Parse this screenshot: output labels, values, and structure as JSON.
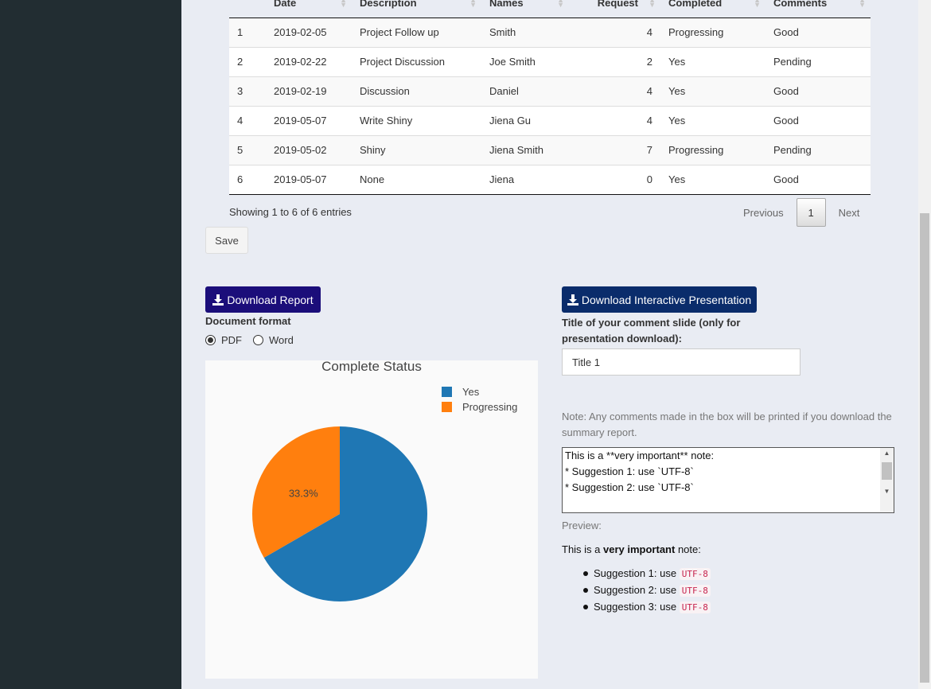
{
  "table": {
    "columns": [
      "",
      "Date",
      "Description",
      "Names",
      "Request",
      "Completed",
      "Comments"
    ],
    "rows": [
      [
        "1",
        "2019-02-05",
        "Project Follow up",
        "Smith",
        "4",
        "Progressing",
        "Good"
      ],
      [
        "2",
        "2019-02-22",
        "Project Discussion",
        "Joe Smith",
        "2",
        "Yes",
        "Pending"
      ],
      [
        "3",
        "2019-02-19",
        "Discussion",
        "Daniel",
        "4",
        "Yes",
        "Good"
      ],
      [
        "4",
        "2019-05-07",
        "Write Shiny",
        "Jiena Gu",
        "4",
        "Yes",
        "Good"
      ],
      [
        "5",
        "2019-05-02",
        "Shiny",
        "Jiena Smith",
        "7",
        "Progressing",
        "Pending"
      ],
      [
        "6",
        "2019-05-07",
        "None",
        "Jiena",
        "0",
        "Yes",
        "Good"
      ]
    ],
    "info": "Showing 1 to 6 of 6 entries",
    "pager": {
      "previous": "Previous",
      "page": "1",
      "next": "Next"
    }
  },
  "save_label": "Save",
  "report": {
    "button_label": "Download Report",
    "format_label": "Document format",
    "options": [
      {
        "label": "PDF",
        "selected": true
      },
      {
        "label": "Word",
        "selected": false
      }
    ]
  },
  "presentation": {
    "button_label": "Download Interactive Presentation",
    "title_label": "Title of your comment slide (only for presentation download):",
    "title_value": "Title 1"
  },
  "comments": {
    "note": "Note: Any comments made in the box will be printed if you download the summary report.",
    "textarea_lines": [
      "This is a **very important** note:",
      "",
      "* Suggestion 1: use `UTF-8`",
      "* Suggestion 2: use `UTF-8`"
    ],
    "preview_label": "Preview:",
    "preview_prefix": "This is a ",
    "preview_bold": "very important",
    "preview_suffix": " note:",
    "suggestions": [
      {
        "text": "Suggestion 1: use ",
        "code": "UTF-8"
      },
      {
        "text": "Suggestion 2: use ",
        "code": "UTF-8"
      },
      {
        "text": "Suggestion 3: use ",
        "code": "UTF-8"
      }
    ]
  },
  "chart_data": {
    "type": "pie",
    "title": "Complete Status",
    "labels": [
      "Yes",
      "Progressing"
    ],
    "values": [
      4,
      2
    ],
    "shown_labels": [
      "",
      "33.3%"
    ],
    "colors": [
      "#1f77b4",
      "#ff7f0e"
    ],
    "legend_position": "top-right"
  }
}
